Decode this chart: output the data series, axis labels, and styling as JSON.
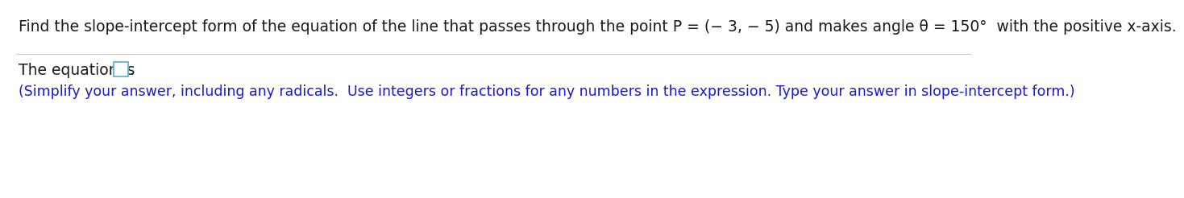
{
  "background_color": "#ffffff",
  "line1_text": "Find the slope-intercept form of the equation of the line that passes through the point P = (− 3, − 5) and makes angle θ = 150°  with the positive x-axis.",
  "line2_prefix": "The equation is ",
  "line2_suffix": ".",
  "line3_text": "(Simplify your answer, including any radicals.  Use integers or fractions for any numbers in the expression. Type your answer in slope-intercept form.)",
  "text_color_black": "#1a1a1a",
  "text_color_blue": "#1a1acc",
  "separator_color": "#c8c8c8",
  "box_edge_color": "#5bb8d4",
  "font_size_main": 13.5,
  "font_size_secondary": 12.5
}
